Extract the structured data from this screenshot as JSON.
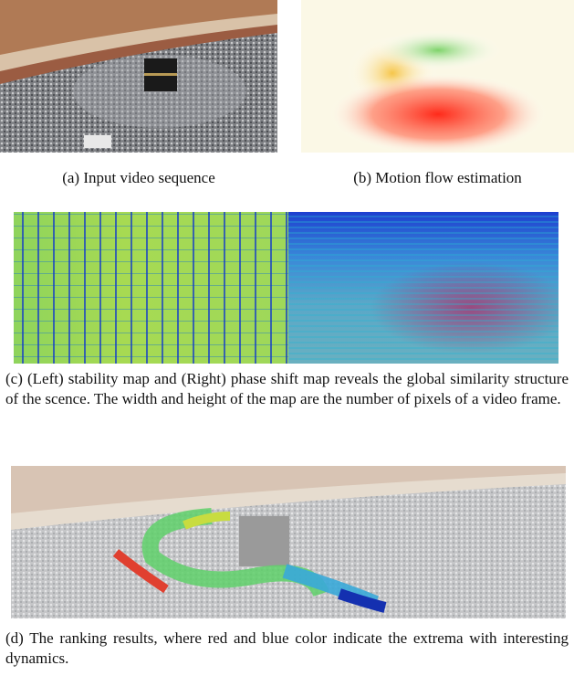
{
  "figure": {
    "panels": [
      {
        "caption": "(a) Input video sequence"
      },
      {
        "caption": "(b) Motion flow estimation"
      },
      {
        "caption": "(c) (Left) stability map and (Right) phase shift map reveals the global similarity structure of the scence. The width and height of the map are the number of pixels of a video frame."
      },
      {
        "caption": "(d) The ranking results, where red and blue color indicate the extrema with interesting dynamics."
      }
    ]
  }
}
